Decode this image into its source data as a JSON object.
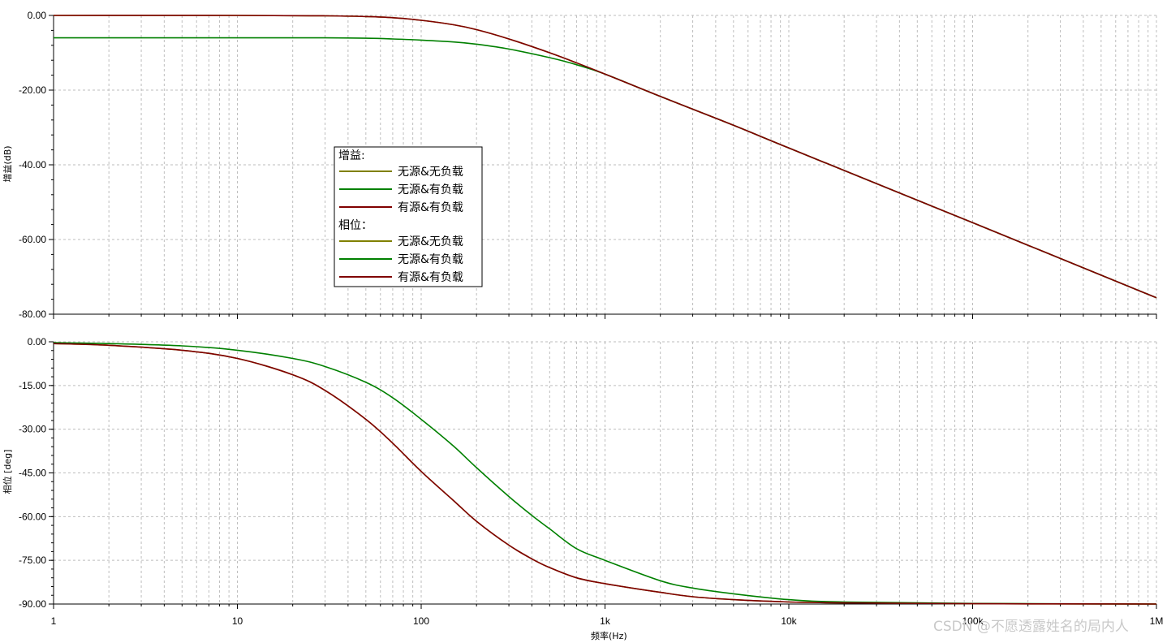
{
  "chart_data": [
    {
      "type": "line",
      "xscale": "log",
      "xlim": [
        1,
        1000000
      ],
      "ylim": [
        -80,
        0
      ],
      "ylabel": "增益(dB)",
      "xticks": [
        "1",
        "10",
        "100",
        "1k",
        "10k",
        "100k",
        "1M"
      ],
      "yticks": [
        "0.00",
        "-20.00",
        "-40.00",
        "-60.00",
        "-80.00"
      ],
      "grid": true,
      "series": [
        {
          "name": "无源&无负载",
          "color": "#808000",
          "x": [
            1,
            10,
            30,
            50,
            70,
            100,
            150,
            200,
            300,
            500,
            700,
            1000,
            2000,
            5000,
            10000,
            100000,
            1000000
          ],
          "y": [
            0,
            0,
            -0.1,
            -0.3,
            -0.6,
            -1.3,
            -2.5,
            -3.8,
            -6.3,
            -10.0,
            -12.7,
            -15.7,
            -21.7,
            -29.4,
            -35.5,
            -55.5,
            -75.6
          ]
        },
        {
          "name": "无源&有负载",
          "color": "#008000",
          "x": [
            1,
            10,
            30,
            50,
            70,
            100,
            150,
            200,
            300,
            500,
            700,
            1000,
            2000,
            5000,
            10000,
            100000,
            1000000
          ],
          "y": [
            -6.0,
            -6.0,
            -6.0,
            -6.1,
            -6.3,
            -6.6,
            -7.1,
            -7.7,
            -9.0,
            -11.3,
            -13.2,
            -15.7,
            -21.7,
            -29.4,
            -35.5,
            -55.5,
            -75.6
          ]
        },
        {
          "name": "有源&有负载",
          "color": "#800000",
          "x": [
            1,
            10,
            30,
            50,
            70,
            100,
            150,
            200,
            300,
            500,
            700,
            1000,
            2000,
            5000,
            10000,
            100000,
            1000000
          ],
          "y": [
            0,
            0,
            -0.1,
            -0.3,
            -0.6,
            -1.3,
            -2.5,
            -3.8,
            -6.3,
            -10.0,
            -12.7,
            -15.7,
            -21.7,
            -29.4,
            -35.5,
            -55.5,
            -75.6
          ]
        }
      ]
    },
    {
      "type": "line",
      "xscale": "log",
      "xlim": [
        1,
        1000000
      ],
      "ylim": [
        -90,
        0
      ],
      "ylabel": "相位 [deg]",
      "xlabel": "频率(Hz)",
      "xticks": [
        "1",
        "10",
        "100",
        "1k",
        "10k",
        "100k",
        "1M"
      ],
      "yticks": [
        "0.00",
        "-15.00",
        "-30.00",
        "-45.00",
        "-60.00",
        "-75.00",
        "-90.00"
      ],
      "grid": true,
      "series": [
        {
          "name": "无源&无负载",
          "color": "#808000",
          "x": [
            1,
            2,
            5,
            10,
            20,
            30,
            50,
            70,
            100,
            150,
            200,
            300,
            400,
            500,
            700,
            1000,
            2000,
            3000,
            5000,
            10000,
            20000,
            100000,
            1000000
          ],
          "y": [
            -0.6,
            -1.2,
            -2.9,
            -5.7,
            -11.3,
            -16.7,
            -26.6,
            -34.8,
            -44.5,
            -54.5,
            -61.6,
            -69.8,
            -74.5,
            -77.5,
            -81.0,
            -83.0,
            -86.0,
            -87.5,
            -88.5,
            -89.3,
            -89.6,
            -89.9,
            -90.0
          ]
        },
        {
          "name": "无源&有负载",
          "color": "#008000",
          "x": [
            1,
            2,
            5,
            10,
            20,
            30,
            50,
            70,
            100,
            150,
            200,
            300,
            400,
            500,
            700,
            1000,
            2000,
            3000,
            5000,
            10000,
            20000,
            100000,
            1000000
          ],
          "y": [
            -0.3,
            -0.6,
            -1.4,
            -2.9,
            -5.7,
            -8.5,
            -13.9,
            -19.2,
            -26.6,
            -35.8,
            -43.2,
            -53.1,
            -59.6,
            -64.2,
            -71.0,
            -75.0,
            -82.0,
            -84.5,
            -86.5,
            -88.5,
            -89.3,
            -89.8,
            -90.0
          ]
        },
        {
          "name": "有源&有负载",
          "color": "#800000",
          "x": [
            1,
            2,
            5,
            10,
            20,
            30,
            50,
            70,
            100,
            150,
            200,
            300,
            400,
            500,
            700,
            1000,
            2000,
            3000,
            5000,
            10000,
            20000,
            100000,
            1000000
          ],
          "y": [
            -0.6,
            -1.2,
            -2.9,
            -5.7,
            -11.3,
            -16.7,
            -26.6,
            -34.8,
            -44.5,
            -54.5,
            -61.6,
            -69.8,
            -74.5,
            -77.5,
            -81.0,
            -83.0,
            -86.0,
            -87.5,
            -88.5,
            -89.3,
            -89.6,
            -89.9,
            -90.0
          ]
        }
      ]
    }
  ],
  "legend": {
    "gain_heading": "增益:",
    "phase_heading": "相位：",
    "gain_items": [
      {
        "label": "无源&无负载",
        "color": "#808000"
      },
      {
        "label": "无源&有负载",
        "color": "#008000"
      },
      {
        "label": "有源&有负载",
        "color": "#800000"
      }
    ],
    "phase_items": [
      {
        "label": "无源&无负载",
        "color": "#808000"
      },
      {
        "label": "无源&有负载",
        "color": "#008000"
      },
      {
        "label": "有源&有负载",
        "color": "#800000"
      }
    ]
  },
  "watermark": "CSDN @不愿透露姓名的局内人"
}
